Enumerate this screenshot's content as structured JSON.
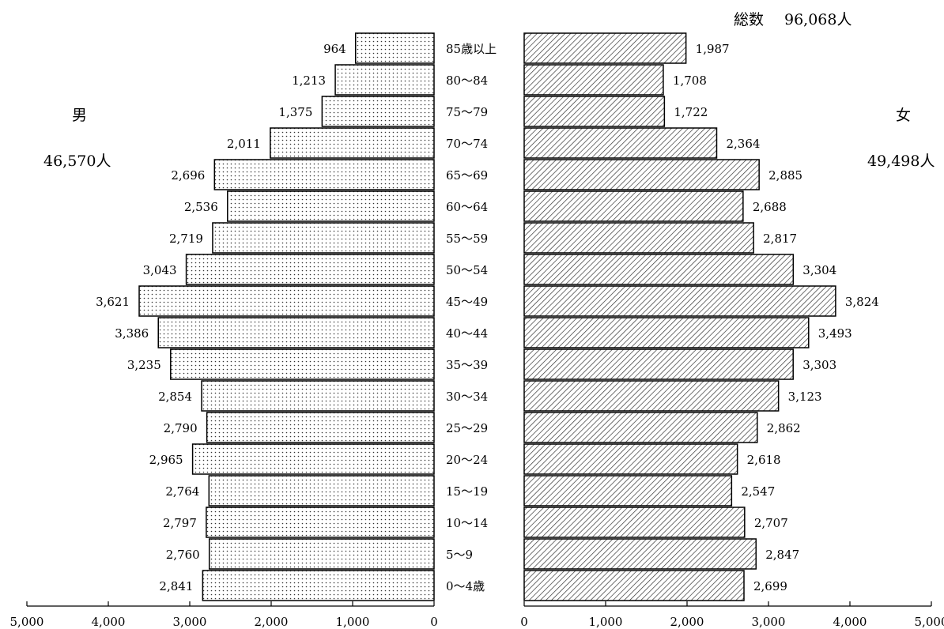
{
  "header": {
    "total_label": "総数",
    "total_value": "96,068人"
  },
  "male": {
    "label": "男",
    "total": "46,570人"
  },
  "female": {
    "label": "女",
    "total": "49,498人"
  },
  "chart_data": {
    "type": "bar",
    "orientation": "horizontal",
    "layout": "population-pyramid",
    "categories": [
      "85歳以上",
      "80〜84",
      "75〜79",
      "70〜74",
      "65〜69",
      "60〜64",
      "55〜59",
      "50〜54",
      "45〜49",
      "40〜44",
      "35〜39",
      "30〜34",
      "25〜29",
      "20〜24",
      "15〜19",
      "10〜14",
      "5〜9",
      "0〜4歳"
    ],
    "series": [
      {
        "name": "男",
        "values": [
          964,
          1213,
          1375,
          2011,
          2696,
          2536,
          2719,
          3043,
          3621,
          3386,
          3235,
          2854,
          2790,
          2965,
          2764,
          2797,
          2760,
          2841
        ],
        "labels": [
          "964",
          "1,213",
          "1,375",
          "2,011",
          "2,696",
          "2,536",
          "2,719",
          "3,043",
          "3,621",
          "3,386",
          "3,235",
          "2,854",
          "2,790",
          "2,965",
          "2,764",
          "2,797",
          "2,760",
          "2,841"
        ],
        "pattern": "dots"
      },
      {
        "name": "女",
        "values": [
          1987,
          1708,
          1722,
          2364,
          2885,
          2688,
          2817,
          3304,
          3824,
          3493,
          3303,
          3123,
          2862,
          2618,
          2547,
          2707,
          2847,
          2699
        ],
        "labels": [
          "1,987",
          "1,708",
          "1,722",
          "2,364",
          "2,885",
          "2,688",
          "2,817",
          "3,304",
          "3,824",
          "3,493",
          "3,303",
          "3,123",
          "2,862",
          "2,618",
          "2,547",
          "2,707",
          "2,847",
          "2,699"
        ],
        "pattern": "diagonal-hatch"
      }
    ],
    "xlim": [
      0,
      5000
    ],
    "xticks": [
      0,
      1000,
      2000,
      3000,
      4000,
      5000
    ],
    "xtick_labels_left": [
      "5,000",
      "4,000",
      "3,000",
      "2,000",
      "1,000",
      "0"
    ],
    "xtick_labels_right": [
      "0",
      "1,000",
      "2,000",
      "3,000",
      "4,000",
      "5,000"
    ],
    "grid": false,
    "legend": "none"
  }
}
